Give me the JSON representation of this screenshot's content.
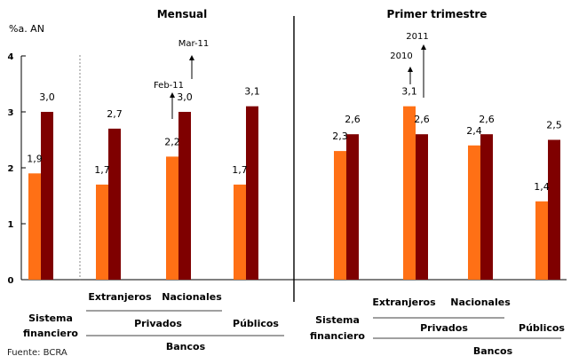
{
  "colors": {
    "orange": "#ff7015",
    "darkred": "#7f0000",
    "axis": "#000000",
    "divider": "#888888"
  },
  "y_unit": "%a. AN",
  "source": "Fuente: BCRA",
  "chart_data": [
    {
      "type": "bar",
      "title": "Mensual",
      "categories": [
        "Sistema financiero",
        "Extranjeros",
        "Nacionales",
        "Públicos"
      ],
      "series": [
        {
          "name": "Feb-11",
          "values": [
            1.9,
            1.7,
            2.2,
            1.7
          ]
        },
        {
          "name": "Mar-11",
          "values": [
            3.0,
            2.7,
            3.0,
            3.1
          ]
        }
      ],
      "value_labels": [
        [
          "1,9",
          "1,7",
          "2,2",
          "1,7"
        ],
        [
          "3,0",
          "2,7",
          "3,0",
          "3,1"
        ]
      ],
      "ylim": [
        0,
        4
      ],
      "yticks": [
        "0",
        "1",
        "2",
        "3",
        "4"
      ]
    },
    {
      "type": "bar",
      "title": "Primer trimestre",
      "categories": [
        "Sistema financiero",
        "Extranjeros",
        "Nacionales",
        "Públicos"
      ],
      "series": [
        {
          "name": "2010",
          "values": [
            2.3,
            3.1,
            2.4,
            1.4
          ]
        },
        {
          "name": "2011",
          "values": [
            2.6,
            2.6,
            2.6,
            2.5
          ]
        }
      ],
      "value_labels": [
        [
          "2,3",
          "3,1",
          "2,4",
          "1,4"
        ],
        [
          "2,6",
          "2,6",
          "2,6",
          "2,5"
        ]
      ],
      "ylim": [
        0,
        4
      ]
    }
  ],
  "group_labels": {
    "sistema_1": "Sistema",
    "sistema_2": "financiero",
    "extranjeros": "Extranjeros",
    "nacionales": "Nacionales",
    "privados": "Privados",
    "publicos": "Públicos",
    "bancos": "Bancos"
  }
}
